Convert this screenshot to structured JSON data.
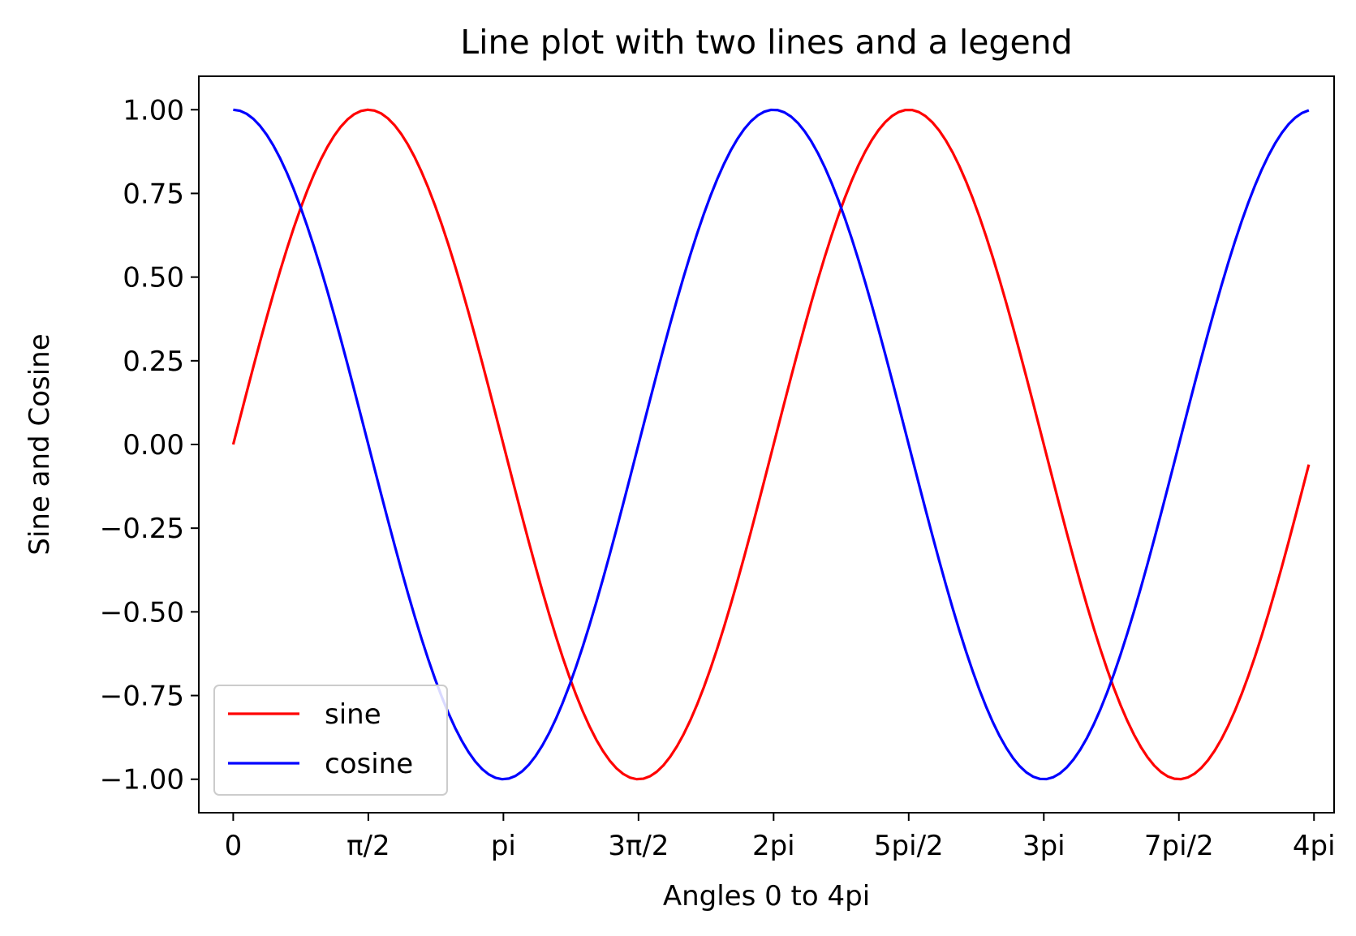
{
  "chart_data": {
    "type": "line",
    "title": "Line plot with two lines and a legend",
    "xlabel": "Angles 0 to 4pi",
    "ylabel": "Sine and Cosine",
    "xlim": [
      -0.4,
      12.8
    ],
    "ylim": [
      -1.1,
      1.1
    ],
    "xticks": [
      0,
      1.5708,
      3.1416,
      4.7124,
      6.2832,
      7.854,
      9.4248,
      10.9956,
      12.5664
    ],
    "xtick_labels": [
      "0",
      "π/2",
      "pi",
      "3π/2",
      "2pi",
      "5pi/2",
      "3pi",
      "7pi/2",
      "4pi"
    ],
    "yticks": [
      1.0,
      0.75,
      0.5,
      0.25,
      0.0,
      -0.25,
      -0.5,
      -0.75,
      -1.0
    ],
    "ytick_labels": [
      "1.00",
      "0.75",
      "0.50",
      "0.25",
      "0.00",
      "−0.25",
      "−0.50",
      "−0.75",
      "−1.00"
    ],
    "x": [
      0,
      0.5,
      1.0,
      1.5,
      2.0,
      2.5,
      3.0,
      3.5,
      4.0,
      4.5,
      5.0,
      5.5,
      6.0,
      6.5,
      7.0,
      7.5,
      8.0,
      8.5,
      9.0,
      9.5,
      10.0,
      10.5,
      11.0,
      11.5,
      12.0,
      12.5
    ],
    "series": [
      {
        "name": "sine",
        "color": "#ff0000",
        "values": [
          0.0,
          0.479,
          0.841,
          0.997,
          0.909,
          0.598,
          0.141,
          -0.351,
          -0.757,
          -0.978,
          -0.959,
          -0.706,
          -0.279,
          0.215,
          0.657,
          0.938,
          0.989,
          0.798,
          0.412,
          -0.075,
          -0.544,
          -0.88,
          -1.0,
          -0.875,
          -0.537,
          -0.066
        ]
      },
      {
        "name": "cosine",
        "color": "#0000ff",
        "values": [
          1.0,
          0.878,
          0.54,
          0.071,
          -0.416,
          -0.801,
          -0.99,
          -0.936,
          -0.654,
          -0.211,
          0.284,
          0.709,
          0.96,
          0.977,
          0.754,
          0.347,
          -0.146,
          -0.602,
          -0.911,
          -0.997,
          -0.839,
          -0.476,
          0.004,
          0.483,
          0.844,
          0.998
        ]
      }
    ],
    "grid": false,
    "legend_position": "lower-left"
  }
}
